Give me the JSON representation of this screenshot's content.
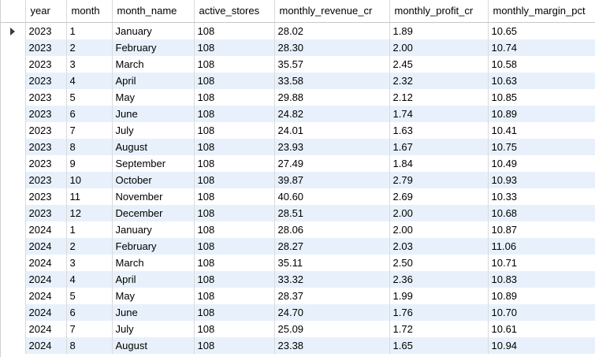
{
  "columns": [
    "year",
    "month",
    "month_name",
    "active_stores",
    "monthly_revenue_cr",
    "monthly_profit_cr",
    "monthly_margin_pct"
  ],
  "rows": [
    [
      "2023",
      "1",
      "January",
      "108",
      "28.02",
      "1.89",
      "10.65"
    ],
    [
      "2023",
      "2",
      "February",
      "108",
      "28.30",
      "2.00",
      "10.74"
    ],
    [
      "2023",
      "3",
      "March",
      "108",
      "35.57",
      "2.45",
      "10.58"
    ],
    [
      "2023",
      "4",
      "April",
      "108",
      "33.58",
      "2.32",
      "10.63"
    ],
    [
      "2023",
      "5",
      "May",
      "108",
      "29.88",
      "2.12",
      "10.85"
    ],
    [
      "2023",
      "6",
      "June",
      "108",
      "24.82",
      "1.74",
      "10.89"
    ],
    [
      "2023",
      "7",
      "July",
      "108",
      "24.01",
      "1.63",
      "10.41"
    ],
    [
      "2023",
      "8",
      "August",
      "108",
      "23.93",
      "1.67",
      "10.75"
    ],
    [
      "2023",
      "9",
      "September",
      "108",
      "27.49",
      "1.84",
      "10.49"
    ],
    [
      "2023",
      "10",
      "October",
      "108",
      "39.87",
      "2.79",
      "10.93"
    ],
    [
      "2023",
      "11",
      "November",
      "108",
      "40.60",
      "2.69",
      "10.33"
    ],
    [
      "2023",
      "12",
      "December",
      "108",
      "28.51",
      "2.00",
      "10.68"
    ],
    [
      "2024",
      "1",
      "January",
      "108",
      "28.06",
      "2.00",
      "10.87"
    ],
    [
      "2024",
      "2",
      "February",
      "108",
      "28.27",
      "2.03",
      "11.06"
    ],
    [
      "2024",
      "3",
      "March",
      "108",
      "35.11",
      "2.50",
      "10.71"
    ],
    [
      "2024",
      "4",
      "April",
      "108",
      "33.32",
      "2.36",
      "10.83"
    ],
    [
      "2024",
      "5",
      "May",
      "108",
      "28.37",
      "1.99",
      "10.89"
    ],
    [
      "2024",
      "6",
      "June",
      "108",
      "24.70",
      "1.76",
      "10.70"
    ],
    [
      "2024",
      "7",
      "July",
      "108",
      "25.09",
      "1.72",
      "10.61"
    ],
    [
      "2024",
      "8",
      "August",
      "108",
      "23.38",
      "1.65",
      "10.94"
    ]
  ],
  "current_row_marker": "row-pointer-icon",
  "colors": {
    "alt_row": "#e8f1fb",
    "grid_line": "#dadada"
  }
}
